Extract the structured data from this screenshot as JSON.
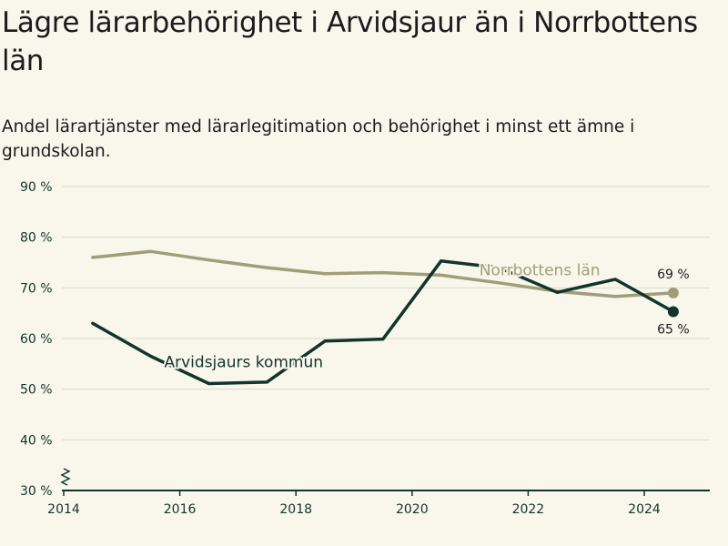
{
  "title": "Lägre lärarbehörighet i Arvidsjaur än i Norrbottens län",
  "subtitle": "Andel lärartjänster med lärarlegitimation och behörighet i minst ett ämne i grundskolan.",
  "colors": {
    "background": "#f9f6ec",
    "text": "#1b1b1b",
    "axis": "#12352a",
    "grid": "#dddbd0"
  },
  "chart_data": {
    "type": "line",
    "title": "Lägre lärarbehörighet i Arvidsjaur än i Norrbottens län",
    "subtitle": "Andel lärartjänster med lärarlegitimation och behörighet i minst ett ämne i grundskolan.",
    "xlabel": "",
    "ylabel": "",
    "xlim": [
      2014,
      2025
    ],
    "ylim": [
      30,
      90
    ],
    "y_axis_break": true,
    "grid": true,
    "legend": "inline labels",
    "x_ticks": [
      2014,
      2016,
      2018,
      2020,
      2022,
      2024
    ],
    "x_tick_labels": [
      "2014",
      "2016",
      "2018",
      "2020",
      "2022",
      "2024"
    ],
    "y_ticks": [
      30,
      40,
      50,
      60,
      70,
      80,
      90
    ],
    "y_tick_labels": [
      "30 %",
      "40 %",
      "50 %",
      "60 %",
      "70 %",
      "80 %",
      "90 %"
    ],
    "series": [
      {
        "name": "Norrbottens län",
        "color": "#a09e79",
        "x": [
          2014.5,
          2015.5,
          2016.5,
          2017.5,
          2018.5,
          2019.5,
          2020.5,
          2021.5,
          2022.5,
          2023.5,
          2024.5
        ],
        "y": [
          76,
          77.2,
          75.5,
          74,
          72.8,
          73,
          72.5,
          71,
          69.3,
          68.3,
          69
        ],
        "end_label": "69 %",
        "label_x": 2022.2,
        "label_y": 72.5
      },
      {
        "name": "Arvidsjaurs kommun",
        "color": "#12352a",
        "x": [
          2014.5,
          2015.5,
          2016.5,
          2017.5,
          2018.5,
          2019.5,
          2020.5,
          2021.5,
          2022.5,
          2023.5,
          2024.5
        ],
        "y": [
          63,
          56.5,
          51.1,
          51.4,
          59.5,
          59.9,
          75.3,
          74,
          69.1,
          71.7,
          65.3
        ],
        "end_label": "65 %",
        "label_x": 2017.1,
        "label_y": 54.3
      }
    ]
  }
}
